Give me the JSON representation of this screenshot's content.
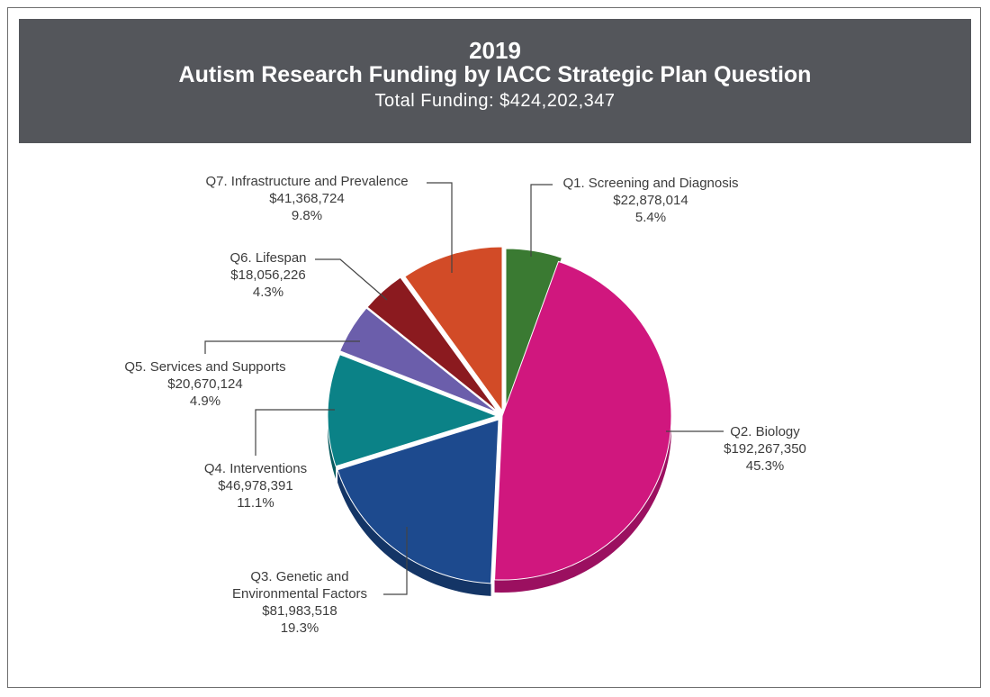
{
  "header": {
    "year": "2019",
    "title": "Autism Research Funding by IACC Strategic Plan Question",
    "total": "Total Funding: $424,202,347"
  },
  "chart_data": {
    "type": "pie",
    "title": "Autism Research Funding by IACC Strategic Plan Question",
    "subtitle": "Total Funding: $424,202,347",
    "slices": [
      {
        "label": "Q1. Screening and Diagnosis",
        "label_lines": [
          "Q1. Screening and Diagnosis"
        ],
        "amount": "$22,878,014",
        "percent_text": "5.4%",
        "value": 22878014,
        "color": "#3a7a32",
        "side": "#2a5a24"
      },
      {
        "label": "Q2. Biology",
        "label_lines": [
          "Q2. Biology"
        ],
        "amount": "$192,267,350",
        "percent_text": "45.3%",
        "value": 192267350,
        "color": "#d0177e",
        "side": "#9b1060"
      },
      {
        "label": "Q3. Genetic and Environmental Factors",
        "label_lines": [
          "Q3. Genetic and",
          "Environmental Factors"
        ],
        "amount": "$81,983,518",
        "percent_text": "19.3%",
        "value": 81983518,
        "color": "#1d4a8e",
        "side": "#143566"
      },
      {
        "label": "Q4. Interventions",
        "label_lines": [
          "Q4. Interventions"
        ],
        "amount": "$46,978,391",
        "percent_text": "11.1%",
        "value": 46978391,
        "color": "#0b8287",
        "side": "#075b5f"
      },
      {
        "label": "Q5. Services and Supports",
        "label_lines": [
          "Q5. Services and Supports"
        ],
        "amount": "$20,670,124",
        "percent_text": "4.9%",
        "value": 20670124,
        "color": "#6b5eab",
        "side": "#4d437d"
      },
      {
        "label": "Q6. Lifespan",
        "label_lines": [
          "Q6. Lifespan"
        ],
        "amount": "$18,056,226",
        "percent_text": "4.3%",
        "value": 18056226,
        "color": "#8b1a1f",
        "side": "#641216"
      },
      {
        "label": "Q7. Infrastructure and Prevalence",
        "label_lines": [
          "Q7. Infrastructure and Prevalence"
        ],
        "amount": "$41,368,724",
        "percent_text": "9.8%",
        "value": 41368724,
        "color": "#d24b27",
        "side": "#9c361b"
      }
    ]
  }
}
